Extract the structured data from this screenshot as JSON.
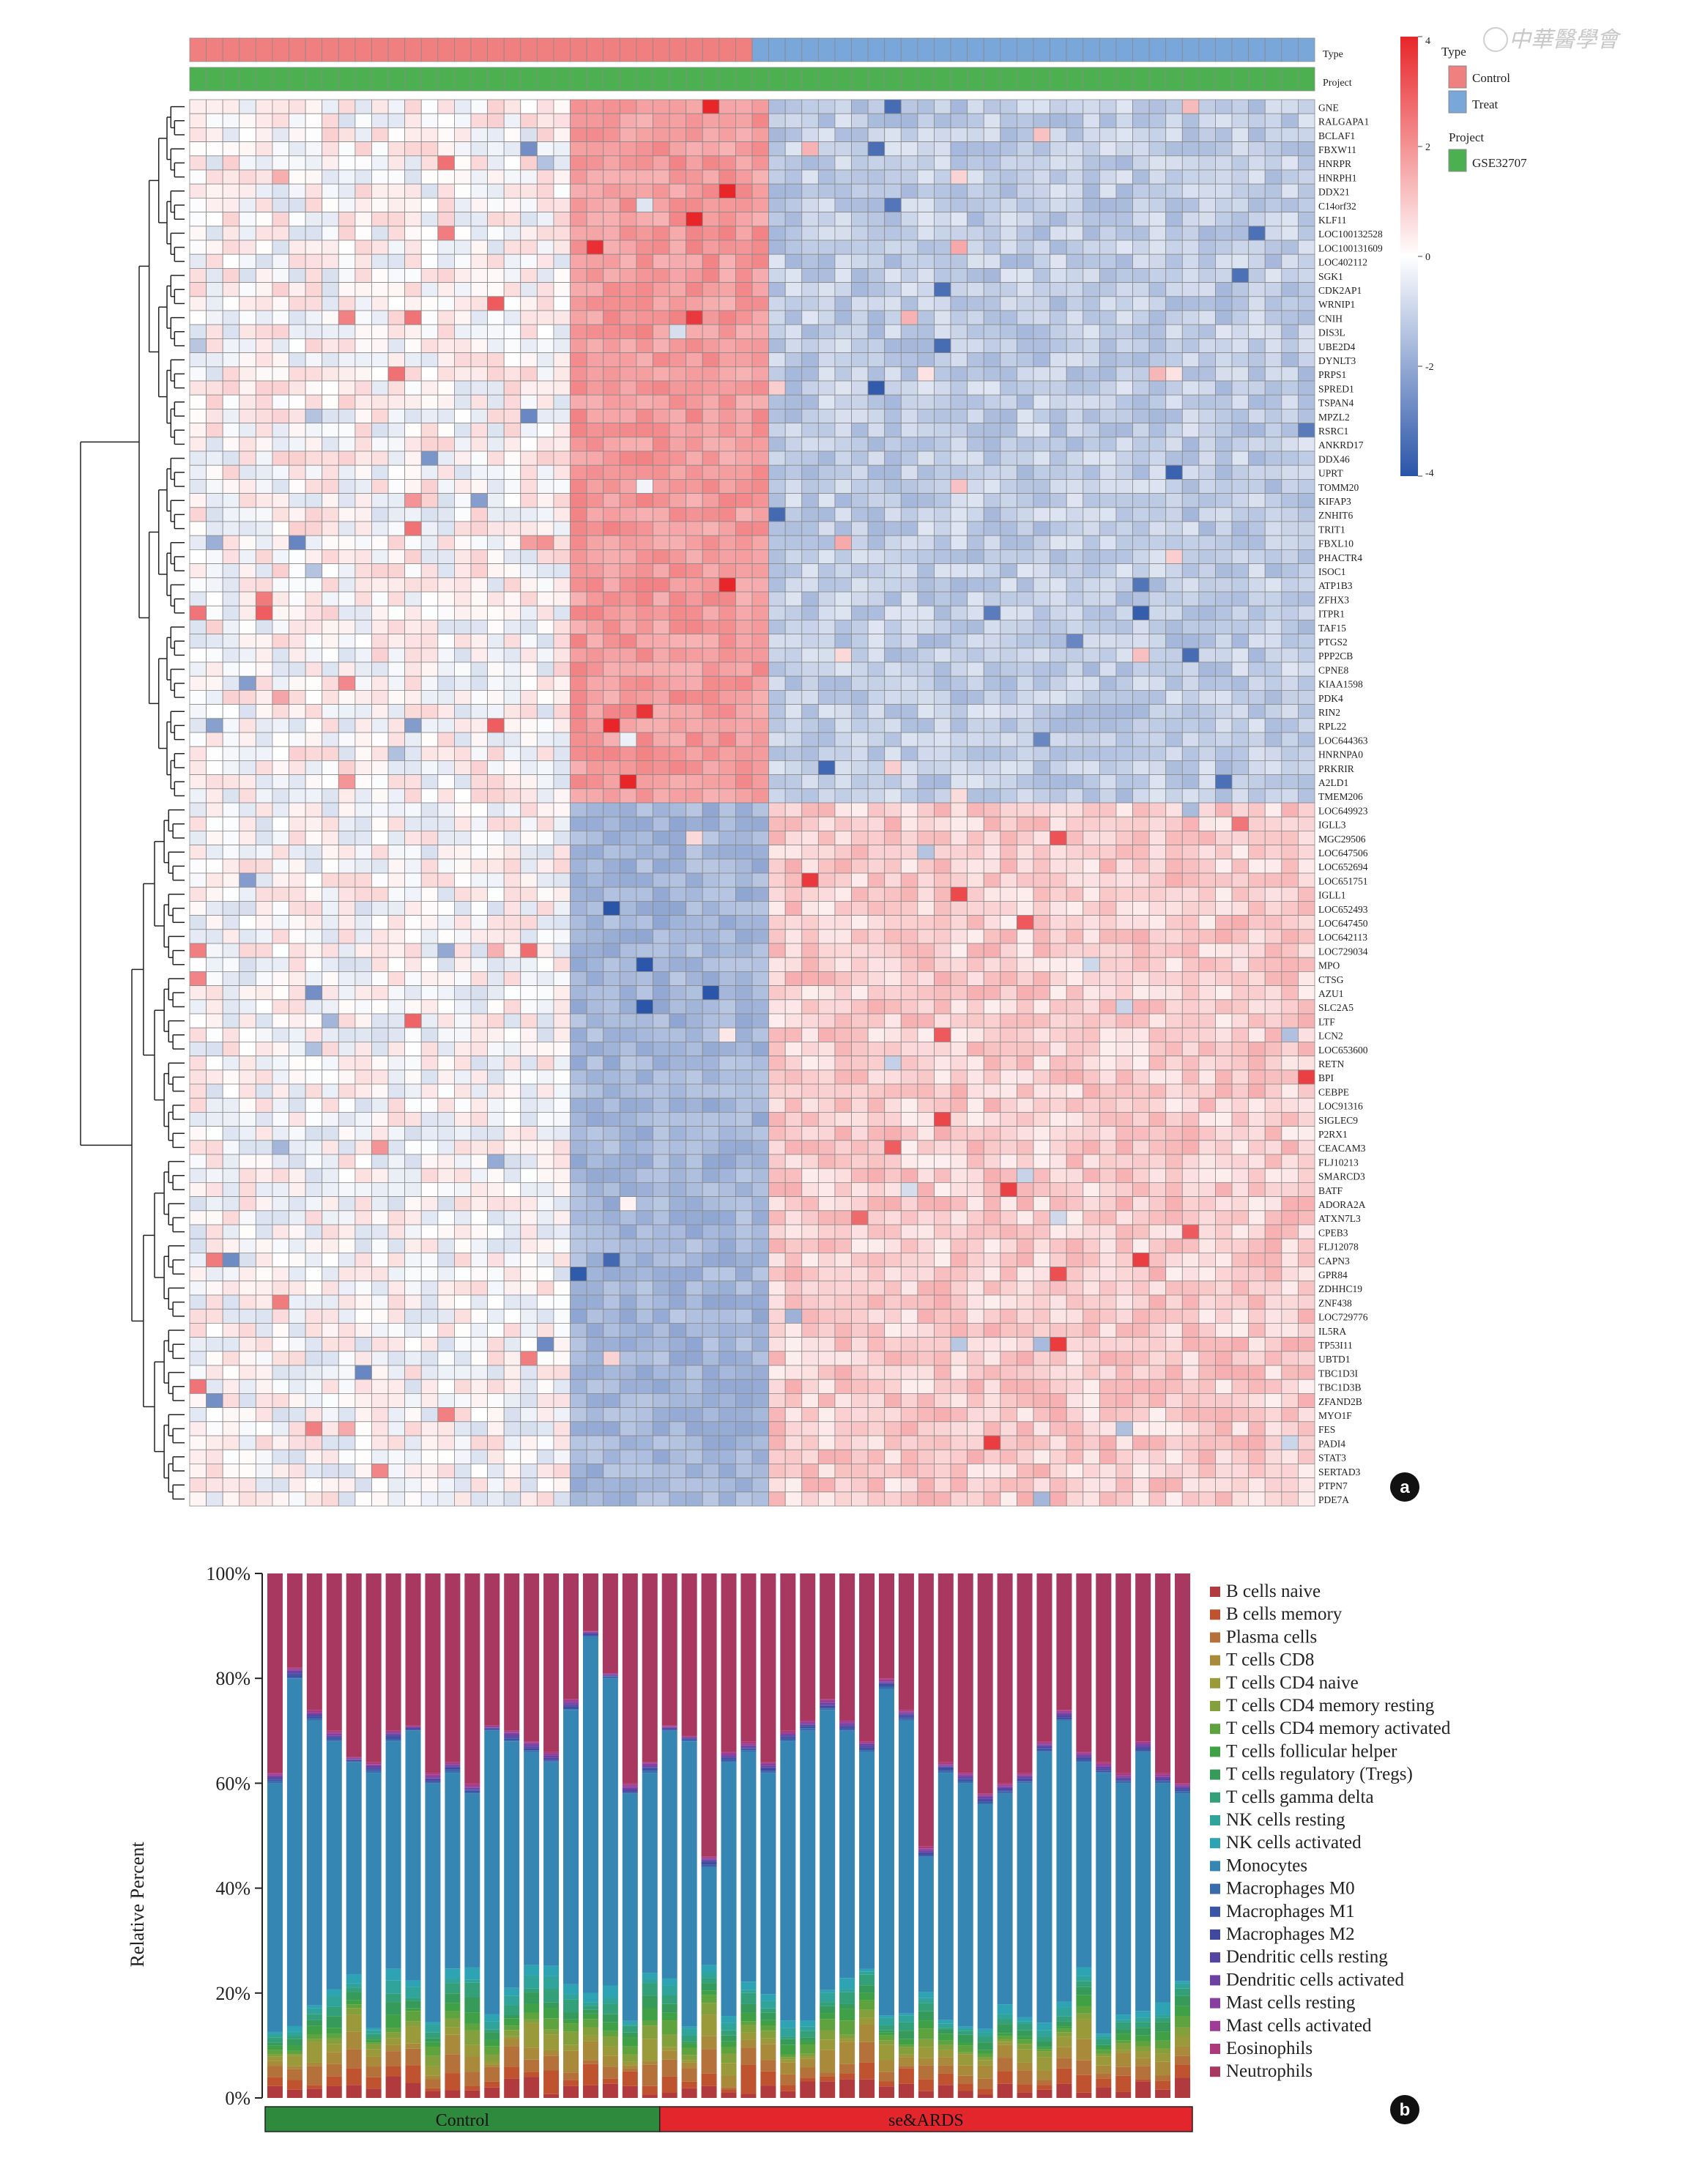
{
  "watermark": "中華醫學會",
  "heatmap": {
    "annotation_labels": {
      "type": "Type",
      "project": "Project"
    },
    "legend": {
      "type_title": "Type",
      "type_items": [
        {
          "label": "Control",
          "color": "#f08080"
        },
        {
          "label": "Treat",
          "color": "#7aa7d9"
        }
      ],
      "project_title": "Project",
      "project_items": [
        {
          "label": "GSE32707",
          "color": "#4caf50"
        }
      ]
    },
    "color_scale": {
      "max": 4,
      "min": -4,
      "ticks": [
        "4",
        "2",
        "0",
        "-2",
        "-4"
      ],
      "high_color": "#e8262a",
      "mid_color": "#ffffff",
      "low_color": "#2a55a8"
    },
    "groups": {
      "control_count": 34,
      "treat_count": 34,
      "hot_block": [
        11,
        16
      ]
    },
    "genes_up": [
      "GNE",
      "RALGAPA1",
      "BCLAF1",
      "FBXW11",
      "HNRPR",
      "HNRPH1",
      "DDX21",
      "C14orf32",
      "KLF11",
      "LOC100132528",
      "LOC100131609",
      "LOC402112",
      "SGK1",
      "CDK2AP1",
      "WRNIP1",
      "CNIH",
      "DIS3L",
      "UBE2D4",
      "DYNLT3",
      "PRPS1",
      "SPRED1",
      "TSPAN4",
      "MPZL2",
      "RSRC1",
      "ANKRD17",
      "DDX46",
      "UPRT",
      "TOMM20",
      "KIFAP3",
      "ZNHIT6",
      "TRIT1",
      "FBXL10",
      "PHACTR4",
      "ISOC1",
      "ATP1B3",
      "ZFHX3",
      "ITPR1",
      "TAF15",
      "PTGS2",
      "PPP2CB",
      "CPNE8",
      "KIAA1598",
      "PDK4",
      "RIN2",
      "RPL22",
      "LOC644363",
      "HNRNPA0",
      "PRKRIR",
      "A2LD1",
      "TMEM206"
    ],
    "genes_down": [
      "LOC649923",
      "IGLL3",
      "MGC29506",
      "LOC647506",
      "LOC652694",
      "LOC651751",
      "IGLL1",
      "LOC652493",
      "LOC647450",
      "LOC642113",
      "LOC729034",
      "MPO",
      "CTSG",
      "AZU1",
      "SLC2A5",
      "LTF",
      "LCN2",
      "LOC653600",
      "RETN",
      "BPI",
      "CEBPE",
      "LOC91316",
      "SIGLEC9",
      "P2RX1",
      "CEACAM3",
      "FLJ10213",
      "SMARCD3",
      "BATF",
      "ADORA2A",
      "ATXN7L3",
      "CPEB3",
      "FLJ12078",
      "CAPN3",
      "GPR84",
      "ZDHHC19",
      "ZNF438",
      "LOC729776",
      "IL5RA",
      "TP53I11",
      "UBTD1",
      "TBC1D3I",
      "TBC1D3B",
      "ZFAND2B",
      "MYO1F",
      "FES",
      "PADI4",
      "STAT3",
      "SERTAD3",
      "PTPN7",
      "PDE7A"
    ],
    "panel_letter": "a"
  },
  "chart_data": {
    "type": "bar",
    "stacked": true,
    "title": "",
    "xlabel": "",
    "ylabel": "Relative Percent",
    "ylim": [
      0,
      100
    ],
    "yticks": [
      "0%",
      "20%",
      "40%",
      "60%",
      "80%",
      "100%"
    ],
    "legend_placement": "right",
    "group_bar": [
      {
        "label": "Control",
        "start": 0,
        "count": 20,
        "color": "#2e8b3e"
      },
      {
        "label": "se&ARDS",
        "start": 20,
        "count": 27,
        "color": "#e2262b"
      }
    ],
    "series": [
      {
        "name": "B cells naive",
        "color": "#b03a3e"
      },
      {
        "name": "B cells memory",
        "color": "#c0532f"
      },
      {
        "name": "Plasma cells",
        "color": "#b5713a"
      },
      {
        "name": "T cells CD8",
        "color": "#a88a3a"
      },
      {
        "name": "T cells CD4 naive",
        "color": "#9a9a3a"
      },
      {
        "name": "T cells CD4 memory resting",
        "color": "#83a03c"
      },
      {
        "name": "T cells CD4 memory activated",
        "color": "#5fa33e"
      },
      {
        "name": "T cells follicular helper",
        "color": "#3fa046"
      },
      {
        "name": "T cells regulatory (Tregs)",
        "color": "#369a5a"
      },
      {
        "name": "T cells gamma delta",
        "color": "#33a079"
      },
      {
        "name": "NK cells resting",
        "color": "#30a49a"
      },
      {
        "name": "NK cells activated",
        "color": "#2ea3b4"
      },
      {
        "name": "Monocytes",
        "color": "#3686b4"
      },
      {
        "name": "Macrophages M0",
        "color": "#3a6bab"
      },
      {
        "name": "Macrophages M1",
        "color": "#3a55a6"
      },
      {
        "name": "Macrophages M2",
        "color": "#4048a0"
      },
      {
        "name": "Dendritic cells resting",
        "color": "#5346a2"
      },
      {
        "name": "Dendritic cells activated",
        "color": "#6c41a2"
      },
      {
        "name": "Mast cells resting",
        "color": "#8840a0"
      },
      {
        "name": "Mast cells activated",
        "color": "#a13b98"
      },
      {
        "name": "Eosinophils",
        "color": "#ac3a7a"
      },
      {
        "name": "Neutrophils",
        "color": "#a8385f"
      }
    ],
    "samples": 47,
    "monocytes_top": [
      60,
      80,
      72,
      68,
      64,
      62,
      68,
      70,
      60,
      62,
      58,
      70,
      68,
      66,
      64,
      74,
      88,
      80,
      58,
      62,
      70,
      68,
      44,
      64,
      66,
      62,
      68,
      70,
      74,
      70,
      66,
      78,
      72,
      46,
      62,
      60,
      56,
      58,
      60,
      66,
      72,
      64,
      62,
      60,
      66,
      60,
      58
    ],
    "neutrophils_start": [
      62,
      82,
      74,
      70,
      65,
      64,
      70,
      71,
      62,
      64,
      60,
      71,
      70,
      68,
      66,
      76,
      89,
      81,
      60,
      64,
      71,
      69,
      46,
      66,
      68,
      64,
      70,
      72,
      76,
      72,
      68,
      80,
      74,
      48,
      64,
      62,
      58,
      60,
      62,
      68,
      74,
      66,
      64,
      62,
      68,
      62,
      60
    ],
    "panel_letter": "b"
  }
}
